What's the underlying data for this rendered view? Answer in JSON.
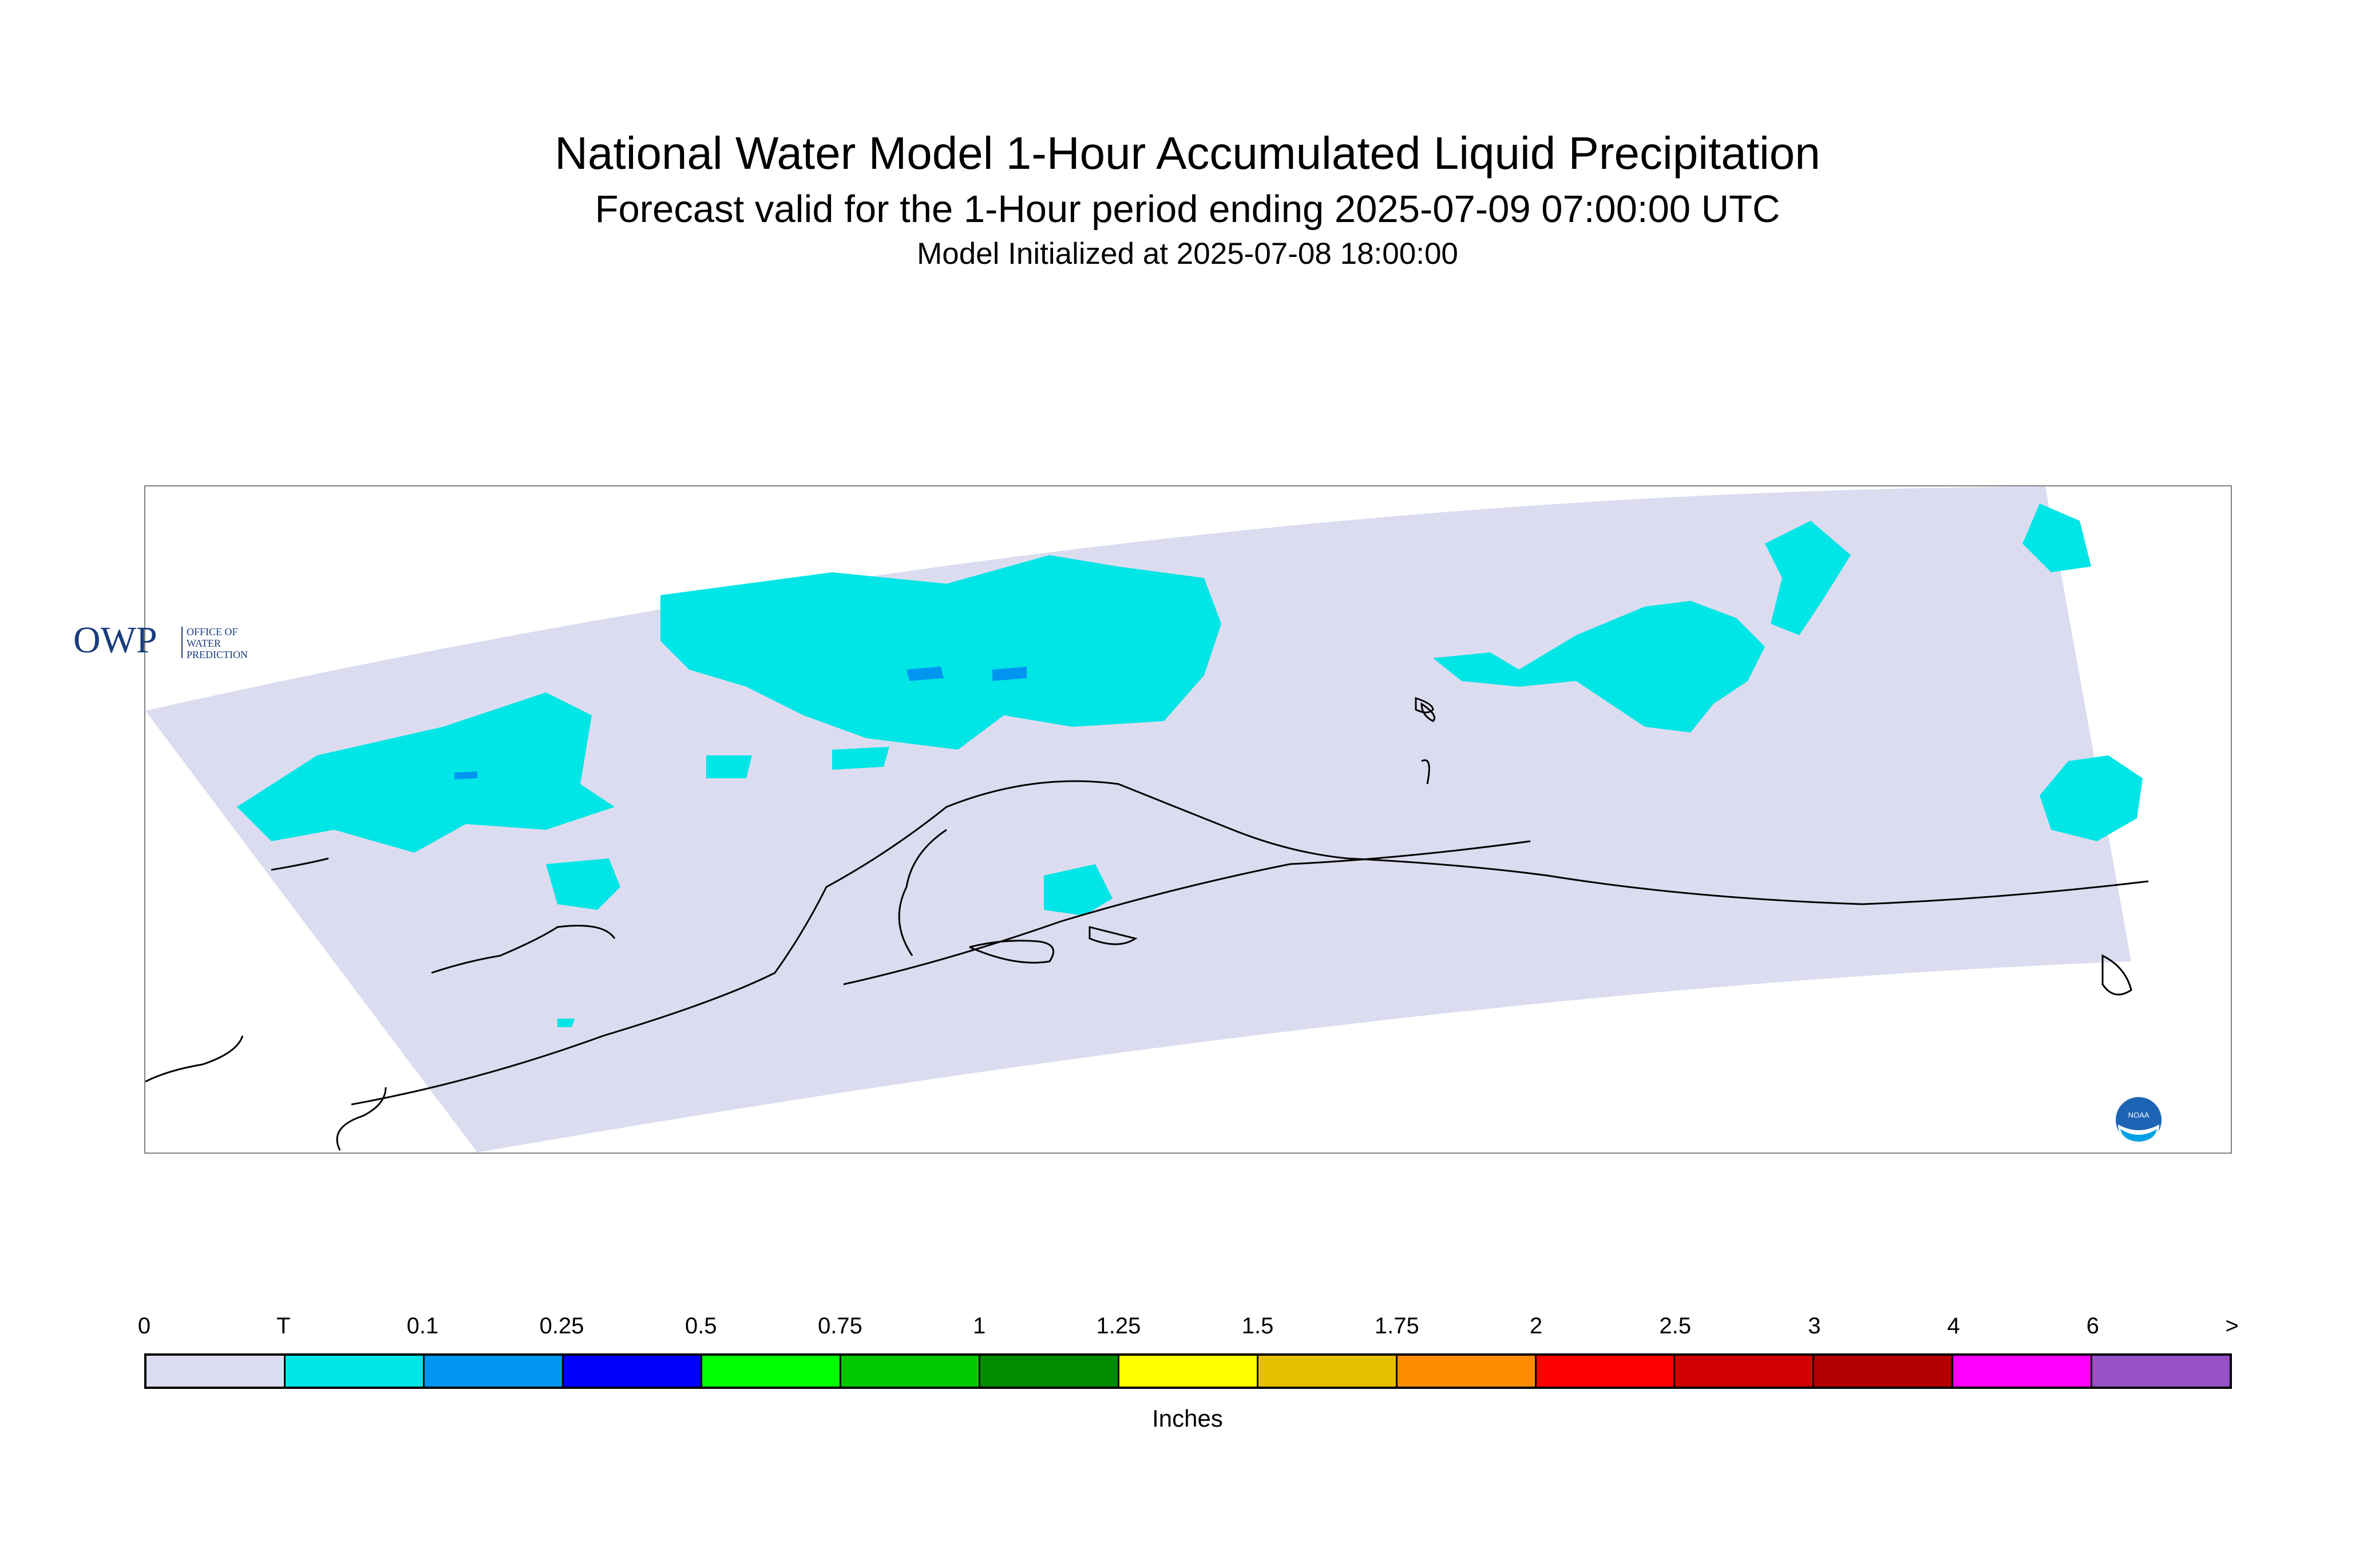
{
  "header": {
    "title": "National Water Model 1-Hour Accumulated Liquid Precipitation",
    "subtitle": "Forecast valid for the 1-Hour period ending 2025-07-09 07:00:00 UTC",
    "init": "Model Initialized at 2025-07-08 18:00:00"
  },
  "map": {
    "domain_fill": "#dcdcf0",
    "precip_light_color": "#00e5e5",
    "precip_medium_color": "#0096f0",
    "coastline_color": "#000000"
  },
  "logos": {
    "owp_mark": "OWP",
    "owp_text_1": "OFFICE OF",
    "owp_text_2": "WATER",
    "owp_text_3": "PREDICTION",
    "noaa_text": "NOAA"
  },
  "legend": {
    "ticks": [
      "0",
      "T",
      "0.1",
      "0.25",
      "0.5",
      "0.75",
      "1",
      "1.25",
      "1.5",
      "1.75",
      "2",
      "2.5",
      "3",
      "4",
      "6",
      ">"
    ],
    "colors": [
      "#dcdcf0",
      "#00e5e5",
      "#0096f0",
      "#0000ff",
      "#00ff00",
      "#00c800",
      "#008c00",
      "#ffff00",
      "#e6be00",
      "#ff8c00",
      "#ff0000",
      "#d20000",
      "#b40000",
      "#ff00ff",
      "#9650c8"
    ],
    "units": "Inches"
  }
}
